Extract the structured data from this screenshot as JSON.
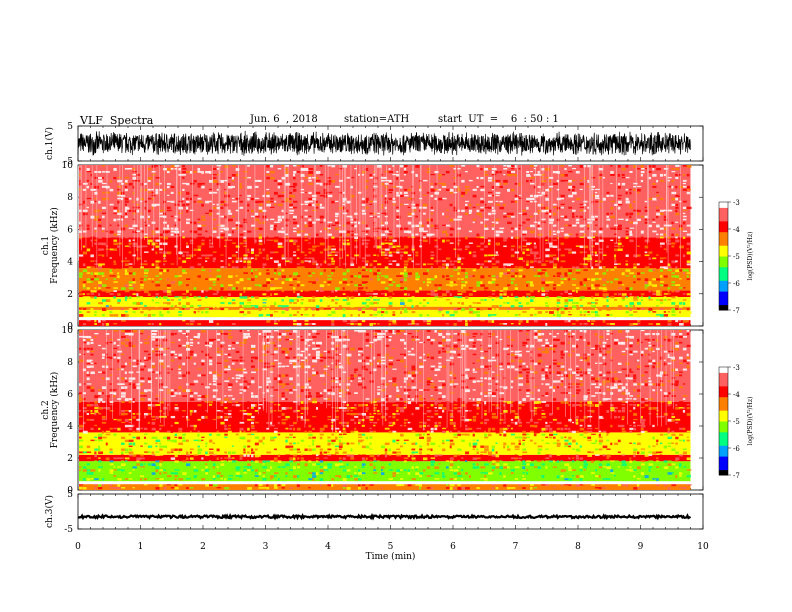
{
  "header": {
    "title": "VLF  Spectra",
    "date": "Jun. 6  , 2018",
    "station": "station=ATH",
    "start": "start  UT  =    6  : 50 : 1"
  },
  "colors": {
    "background": "#ffffff",
    "waveform": "#000000",
    "colormap": [
      "#000000",
      "#0000ff",
      "#00a0ff",
      "#00ff80",
      "#80ff00",
      "#ffff00",
      "#ff8000",
      "#ff0000",
      "#ff6060",
      "#ffffff"
    ]
  },
  "chart_data": [
    {
      "type": "line",
      "panel": "ch1-waveform",
      "ylabel": "ch.1(V)",
      "ylim": [
        -5,
        5
      ],
      "yticks": [
        "5",
        "-5"
      ],
      "xlim": [
        0,
        10
      ],
      "description_of_signal": "dense noisy waveform spanning roughly -4 to +4 V from 0 to 9.8 min"
    },
    {
      "type": "heatmap",
      "panel": "ch1-spectrogram",
      "ylabel": "ch.1\nFrequency  (kHz)",
      "ylim": [
        0,
        10
      ],
      "yticks": [
        "0",
        "2",
        "4",
        "6",
        "8",
        "10"
      ],
      "xlim": [
        0,
        10
      ],
      "colorbar": {
        "label": "log(PSD)(V²/Hz)",
        "ticks": [
          "-3",
          "-4",
          "-5",
          "-6",
          "-7"
        ],
        "range": [
          -7,
          -3
        ]
      },
      "bands": [
        {
          "fmin": 0.0,
          "fmax": 0.4,
          "level": -4.0
        },
        {
          "fmin": 0.4,
          "fmax": 1.0,
          "level": -4.8
        },
        {
          "fmin": 1.0,
          "fmax": 1.2,
          "level": -4.2
        },
        {
          "fmin": 1.2,
          "fmax": 1.8,
          "level": -5.0
        },
        {
          "fmin": 1.8,
          "fmax": 2.2,
          "level": -4.0
        },
        {
          "fmin": 2.2,
          "fmax": 3.6,
          "level": -4.5
        },
        {
          "fmin": 3.6,
          "fmax": 5.5,
          "level": -3.9
        },
        {
          "fmin": 5.5,
          "fmax": 10.0,
          "level": -3.5
        }
      ]
    },
    {
      "type": "heatmap",
      "panel": "ch2-spectrogram",
      "ylabel": "ch.2\nFrequency  (kHz)",
      "ylim": [
        0,
        10
      ],
      "yticks": [
        "0",
        "2",
        "4",
        "6",
        "8",
        "10"
      ],
      "xlim": [
        0,
        10
      ],
      "colorbar": {
        "label": "log(PSD)(V²/Hz)",
        "ticks": [
          "-3",
          "-4",
          "-5",
          "-6",
          "-7"
        ],
        "range": [
          -7,
          -3
        ]
      },
      "bands": [
        {
          "fmin": 0.0,
          "fmax": 0.4,
          "level": -4.2
        },
        {
          "fmin": 0.4,
          "fmax": 1.8,
          "level": -5.1
        },
        {
          "fmin": 1.8,
          "fmax": 2.2,
          "level": -4.0
        },
        {
          "fmin": 2.2,
          "fmax": 3.6,
          "level": -4.7
        },
        {
          "fmin": 3.6,
          "fmax": 5.5,
          "level": -3.9
        },
        {
          "fmin": 5.5,
          "fmax": 10.0,
          "level": -3.5
        }
      ]
    },
    {
      "type": "line",
      "panel": "ch3-waveform",
      "ylabel": "ch.3(V)",
      "ylim": [
        -5,
        5
      ],
      "yticks": [
        "5",
        "-5"
      ],
      "xlim": [
        0,
        10
      ],
      "xlabel": "Time  (min)",
      "xticks": [
        "0",
        "1",
        "2",
        "3",
        "4",
        "5",
        "6",
        "7",
        "8",
        "9",
        "10"
      ],
      "description_of_signal": "flat thick trace near -1.5 V from 0 to 9.8 min"
    }
  ]
}
